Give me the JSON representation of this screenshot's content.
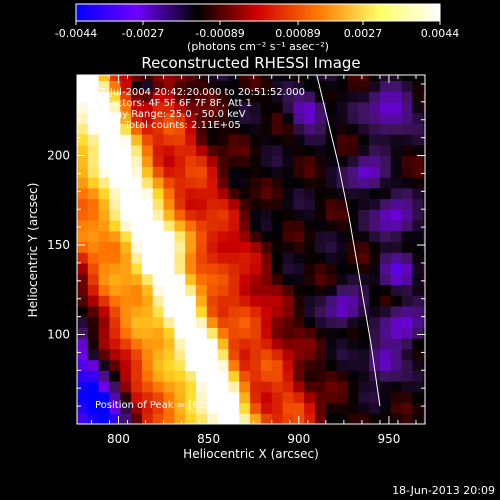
{
  "colorbar": {
    "ticks": [
      "-0.0044",
      "-0.0027",
      "-0.00089",
      "0.00089",
      "0.0027",
      "0.0044"
    ],
    "unit_label": "(photons cm⁻² s⁻¹ asec⁻²)",
    "colormap": [
      "#0000ff",
      "#7000ff",
      "#000000",
      "#d40000",
      "#ff7a00",
      "#ffff66",
      "#ffffff"
    ]
  },
  "chart_data": {
    "type": "heatmap",
    "title": "Reconstructed RHESSI Image",
    "xlabel": "Heliocentric X (arcsec)",
    "ylabel": "Heliocentric Y (arcsec)",
    "xlim": [
      777,
      970
    ],
    "ylim": [
      50,
      245
    ],
    "xticks": [
      "800",
      "850",
      "900",
      "950"
    ],
    "yticks": [
      "100",
      "150",
      "200"
    ],
    "zlim": [
      -0.0044,
      0.0044
    ],
    "peak": [
      829,
      153
    ],
    "limb_curve": {
      "x": [
        910,
        916,
        922,
        928,
        934,
        940,
        945
      ],
      "y": [
        245,
        220,
        195,
        165,
        130,
        95,
        60
      ]
    },
    "annotations": [
      "27-Jul-2004 20:42:20.000 to 20:51:52.000",
      "Detectors: 4F 5F 6F 7F 8F, Att 1",
      "Energy Range: 25.0 - 50.0 keV",
      "Clean     Total counts: 2.11E+05",
      "Position of Peak = [829,153]"
    ]
  },
  "footer": {
    "timestamp": "18-Jun-2013 20:09"
  }
}
